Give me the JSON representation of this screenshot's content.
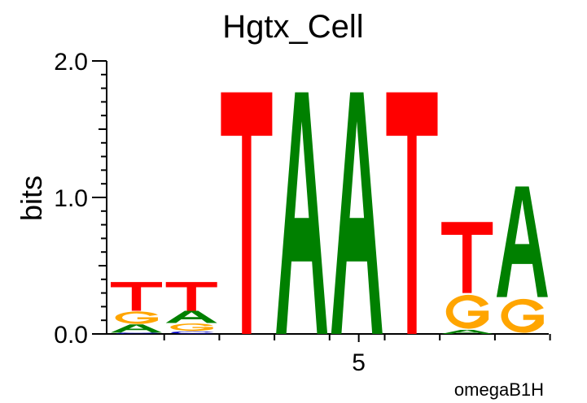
{
  "chart_data": {
    "type": "sequence-logo",
    "title": "Hgtx_Cell",
    "ylabel": "bits",
    "xlabel": "",
    "ylim": [
      0,
      2
    ],
    "y_ticks": [
      "0.0",
      "1.0",
      "2.0"
    ],
    "x_ticks": [
      {
        "position": 5,
        "label": "5"
      }
    ],
    "footer": "omegaB1H",
    "colors": {
      "A": "#008000",
      "C": "#0000cc",
      "G": "#ffa500",
      "T": "#ff0000"
    },
    "positions": [
      {
        "index": 1,
        "stack": [
          {
            "letter": "C",
            "bits": 0.01
          },
          {
            "letter": "A",
            "bits": 0.06
          },
          {
            "letter": "G",
            "bits": 0.1
          },
          {
            "letter": "T",
            "bits": 0.21
          }
        ]
      },
      {
        "index": 2,
        "stack": [
          {
            "letter": "C",
            "bits": 0.02
          },
          {
            "letter": "G",
            "bits": 0.06
          },
          {
            "letter": "A",
            "bits": 0.09
          },
          {
            "letter": "T",
            "bits": 0.21
          }
        ]
      },
      {
        "index": 3,
        "stack": [
          {
            "letter": "T",
            "bits": 1.77
          }
        ]
      },
      {
        "index": 4,
        "stack": [
          {
            "letter": "A",
            "bits": 1.77
          }
        ]
      },
      {
        "index": 5,
        "stack": [
          {
            "letter": "A",
            "bits": 1.77
          }
        ]
      },
      {
        "index": 6,
        "stack": [
          {
            "letter": "T",
            "bits": 1.77
          }
        ]
      },
      {
        "index": 7,
        "stack": [
          {
            "letter": "A",
            "bits": 0.03
          },
          {
            "letter": "G",
            "bits": 0.27
          },
          {
            "letter": "T",
            "bits": 0.52
          }
        ]
      },
      {
        "index": 8,
        "stack": [
          {
            "letter": "G",
            "bits": 0.27
          },
          {
            "letter": "A",
            "bits": 0.81
          }
        ]
      }
    ]
  }
}
